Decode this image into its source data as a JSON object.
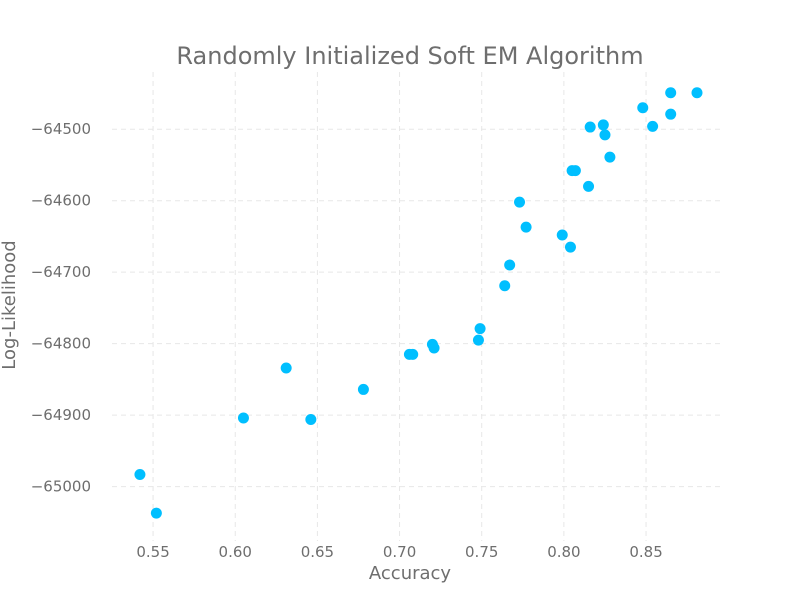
{
  "chart_data": {
    "type": "scatter",
    "title": "Randomly Initialized Soft EM Algorithm",
    "xlabel": "Accuracy",
    "ylabel": "Log-Likelihood",
    "xlim": [
      0.525,
      0.895
    ],
    "ylim": [
      -65076,
      -64420
    ],
    "x_ticks": [
      "0.55",
      "0.60",
      "0.65",
      "0.70",
      "0.75",
      "0.80",
      "0.85"
    ],
    "y_ticks": [
      "−65000",
      "−64900",
      "−64800",
      "−64700",
      "−64600",
      "−64500"
    ],
    "grid": true,
    "point_color": "#00bfff",
    "series": [
      {
        "points": [
          {
            "x": 0.542,
            "y": -64983
          },
          {
            "x": 0.552,
            "y": -65037
          },
          {
            "x": 0.605,
            "y": -64904
          },
          {
            "x": 0.631,
            "y": -64834
          },
          {
            "x": 0.646,
            "y": -64906
          },
          {
            "x": 0.678,
            "y": -64864
          },
          {
            "x": 0.706,
            "y": -64815
          },
          {
            "x": 0.708,
            "y": -64815
          },
          {
            "x": 0.72,
            "y": -64801
          },
          {
            "x": 0.721,
            "y": -64806
          },
          {
            "x": 0.748,
            "y": -64795
          },
          {
            "x": 0.749,
            "y": -64779
          },
          {
            "x": 0.764,
            "y": -64719
          },
          {
            "x": 0.767,
            "y": -64690
          },
          {
            "x": 0.773,
            "y": -64602
          },
          {
            "x": 0.777,
            "y": -64637
          },
          {
            "x": 0.799,
            "y": -64648
          },
          {
            "x": 0.804,
            "y": -64665
          },
          {
            "x": 0.805,
            "y": -64558
          },
          {
            "x": 0.807,
            "y": -64558
          },
          {
            "x": 0.815,
            "y": -64580
          },
          {
            "x": 0.816,
            "y": -64497
          },
          {
            "x": 0.824,
            "y": -64494
          },
          {
            "x": 0.825,
            "y": -64508
          },
          {
            "x": 0.828,
            "y": -64539
          },
          {
            "x": 0.848,
            "y": -64470
          },
          {
            "x": 0.854,
            "y": -64496
          },
          {
            "x": 0.865,
            "y": -64449
          },
          {
            "x": 0.865,
            "y": -64479
          },
          {
            "x": 0.881,
            "y": -64449
          }
        ]
      }
    ]
  }
}
